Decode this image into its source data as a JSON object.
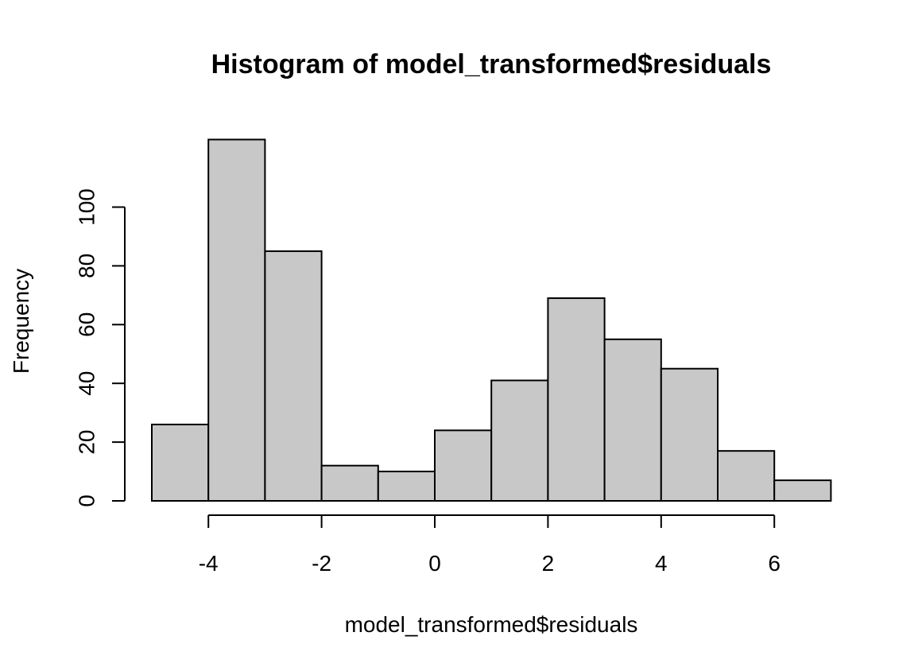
{
  "chart_data": {
    "type": "bar",
    "title": "Histogram of model_transformed$residuals",
    "xlabel": "model_transformed$residuals",
    "ylabel": "Frequency",
    "bins": [
      {
        "x0": -5,
        "x1": -4,
        "count": 26
      },
      {
        "x0": -4,
        "x1": -3,
        "count": 123
      },
      {
        "x0": -3,
        "x1": -2,
        "count": 85
      },
      {
        "x0": -2,
        "x1": -1,
        "count": 12
      },
      {
        "x0": -1,
        "x1": 0,
        "count": 10
      },
      {
        "x0": 0,
        "x1": 1,
        "count": 24
      },
      {
        "x0": 1,
        "x1": 2,
        "count": 41
      },
      {
        "x0": 2,
        "x1": 3,
        "count": 69
      },
      {
        "x0": 3,
        "x1": 4,
        "count": 55
      },
      {
        "x0": 4,
        "x1": 5,
        "count": 45
      },
      {
        "x0": 5,
        "x1": 6,
        "count": 17
      },
      {
        "x0": 6,
        "x1": 7,
        "count": 7
      }
    ],
    "x_ticks": [
      -4,
      -2,
      0,
      2,
      4,
      6
    ],
    "y_ticks": [
      0,
      20,
      40,
      60,
      80,
      100
    ],
    "xlim": [
      -5,
      7
    ],
    "ylim": [
      0,
      120
    ],
    "grid": false,
    "bar_color": "#c8c8c8",
    "edge_color": "#000000"
  }
}
